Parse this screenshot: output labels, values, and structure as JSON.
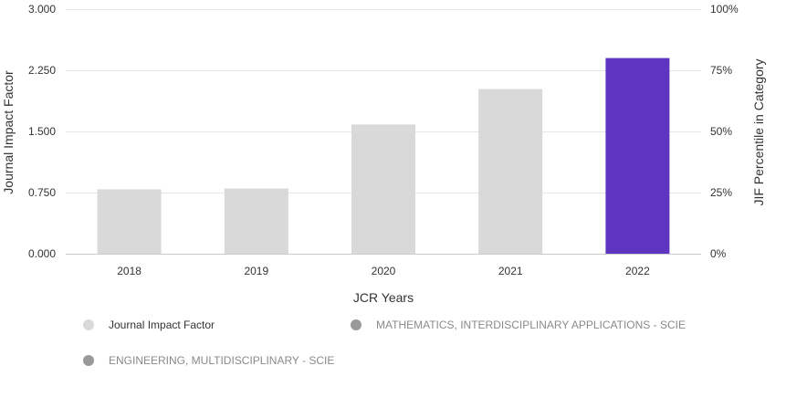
{
  "chart_data": {
    "type": "bar",
    "categories": [
      "2018",
      "2019",
      "2020",
      "2021",
      "2022"
    ],
    "values": [
      0.79,
      0.8,
      1.585,
      2.02,
      2.4
    ],
    "bar_colors": [
      "#d9d9d9",
      "#d9d9d9",
      "#d9d9d9",
      "#d9d9d9",
      "#5e35c1"
    ],
    "xlabel": "JCR Years",
    "ylabel": "Journal Impact Factor",
    "y2label": "JIF Percentile in Category",
    "ylim": [
      0,
      3
    ],
    "y_ticks": [
      0,
      0.75,
      1.5,
      2.25,
      3
    ],
    "y_tick_labels": [
      "0.000",
      "0.750",
      "1.500",
      "2.250",
      "3.000"
    ],
    "y2_ticks": [
      0,
      25,
      50,
      75,
      100
    ],
    "y2_tick_labels": [
      "0%",
      "25%",
      "50%",
      "75%",
      "100%"
    ],
    "grid": true,
    "legend_position": "bottom",
    "legend": [
      {
        "label": "Journal Impact Factor",
        "color": "#d9d9d9"
      },
      {
        "label": "MATHEMATICS, INTERDISCIPLINARY APPLICATIONS - SCIE",
        "color": "#999999"
      },
      {
        "label": "ENGINEERING, MULTIDISCIPLINARY - SCIE",
        "color": "#999999"
      }
    ]
  }
}
